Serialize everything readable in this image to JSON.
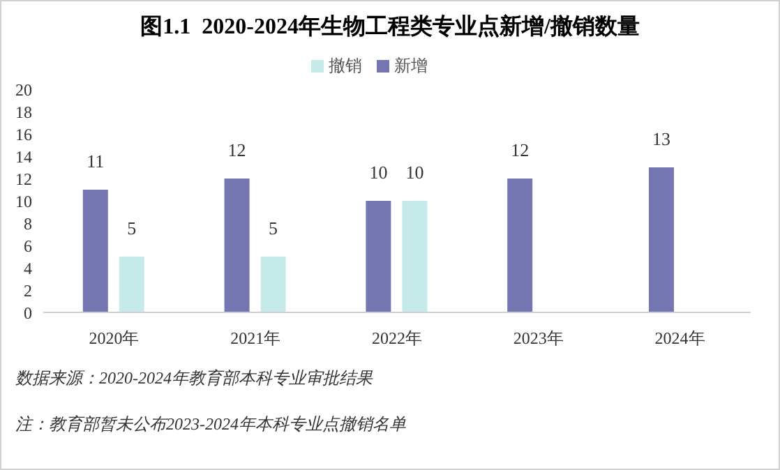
{
  "chart_data": {
    "type": "bar",
    "title": "图1.1  2020-2024年生物工程类专业点新增/撤销数量",
    "categories": [
      "2020年",
      "2021年",
      "2022年",
      "2023年",
      "2024年"
    ],
    "series": [
      {
        "name": "新增",
        "color": "#7376b0",
        "values": [
          11,
          12,
          10,
          12,
          13
        ]
      },
      {
        "name": "撤销",
        "color": "#c5eae9",
        "values": [
          5,
          5,
          10,
          null,
          null
        ]
      }
    ],
    "ylim": [
      0,
      20
    ],
    "yticks": [
      0,
      2,
      4,
      6,
      8,
      10,
      12,
      14,
      16,
      18,
      20
    ],
    "grid": false,
    "legend": "top",
    "data_labels": true,
    "annotations": [
      "数据来源：2020-2024年教育部本科专业审批结果",
      "注：教育部暂未公布2023-2024年本科专业点撤销名单"
    ]
  }
}
